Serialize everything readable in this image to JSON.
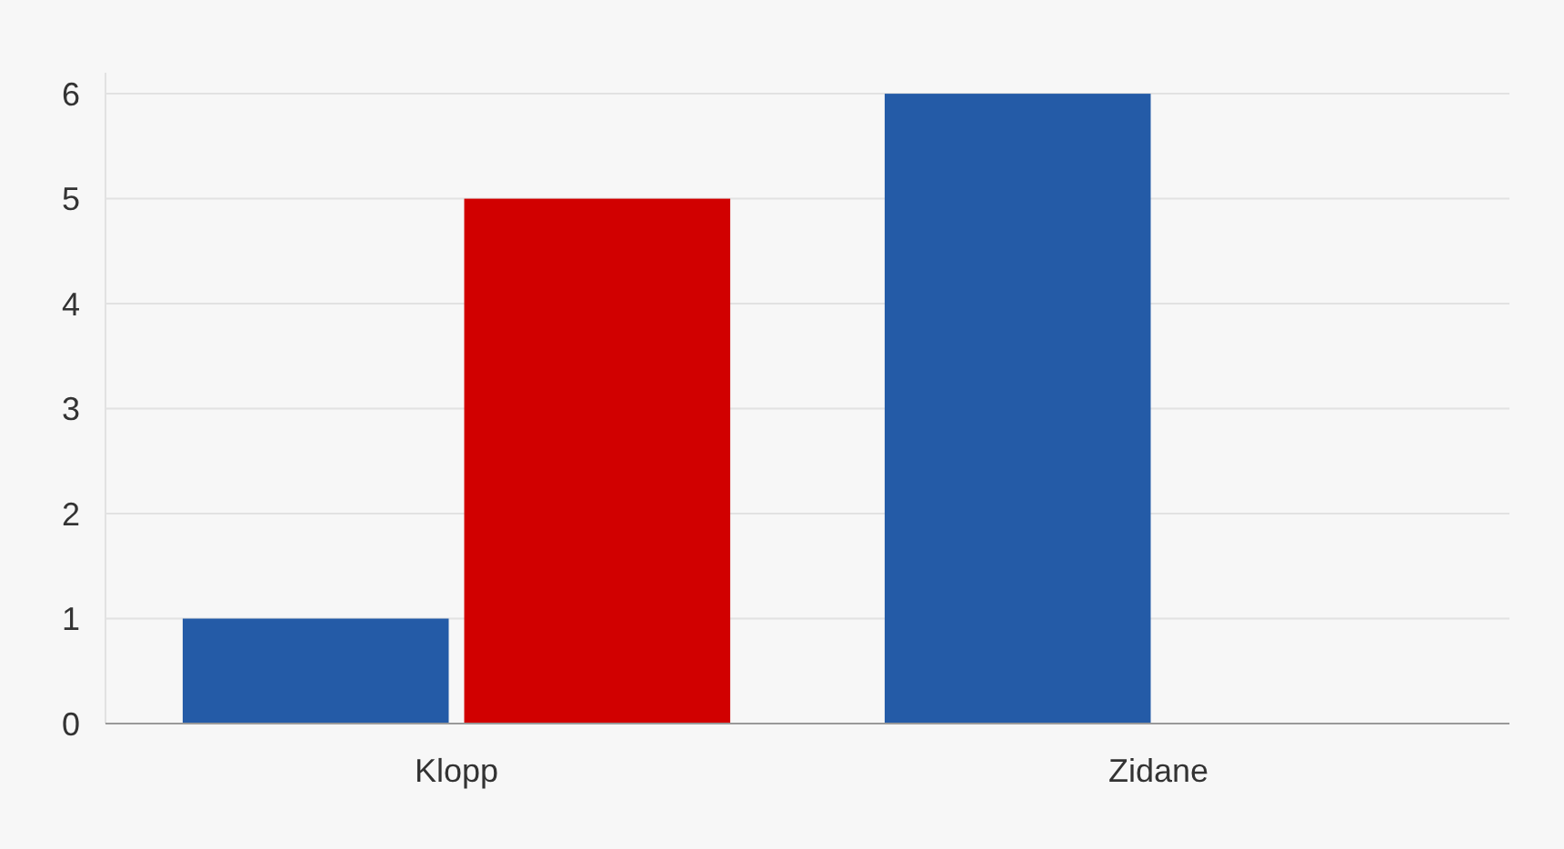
{
  "chart_data": {
    "type": "bar",
    "categories": [
      "Klopp",
      "Zidane"
    ],
    "series": [
      {
        "color": "#245ba7",
        "values": [
          1,
          6
        ]
      },
      {
        "color": "#d10000",
        "values": [
          5,
          0
        ]
      }
    ],
    "ylim": [
      0,
      6.2
    ],
    "yticks": [
      0,
      1,
      2,
      3,
      4,
      5,
      6
    ],
    "grid": "y"
  }
}
